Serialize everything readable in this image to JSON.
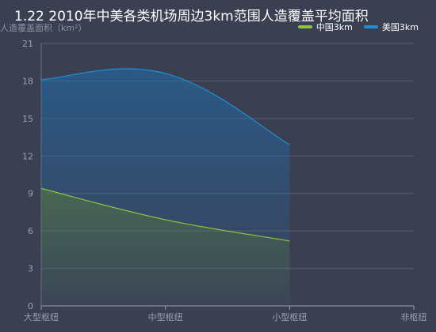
{
  "title": "1.22 2010年中美各类机场周边3km范围人造覆盖平均面积",
  "chart_data": {
    "type": "area",
    "title": "1.22 2010年中美各类机场周边3km范围人造覆盖平均面积",
    "ylabel": "人造覆盖面积（km²）",
    "xlabel": "",
    "categories": [
      "大型枢纽",
      "中型枢纽",
      "小型枢纽",
      "非枢纽"
    ],
    "ylim": [
      0,
      21
    ],
    "yticks": [
      0,
      3,
      6,
      9,
      12,
      15,
      18,
      21
    ],
    "grid": true,
    "legend_position": "top-right",
    "series": [
      {
        "name": "中国3km",
        "color": "#8cc63f",
        "values": [
          9.4,
          6.9,
          5.2,
          null
        ]
      },
      {
        "name": "美国3km",
        "color": "#1e90d6",
        "values": [
          18.1,
          18.6,
          12.9,
          null
        ]
      }
    ]
  }
}
